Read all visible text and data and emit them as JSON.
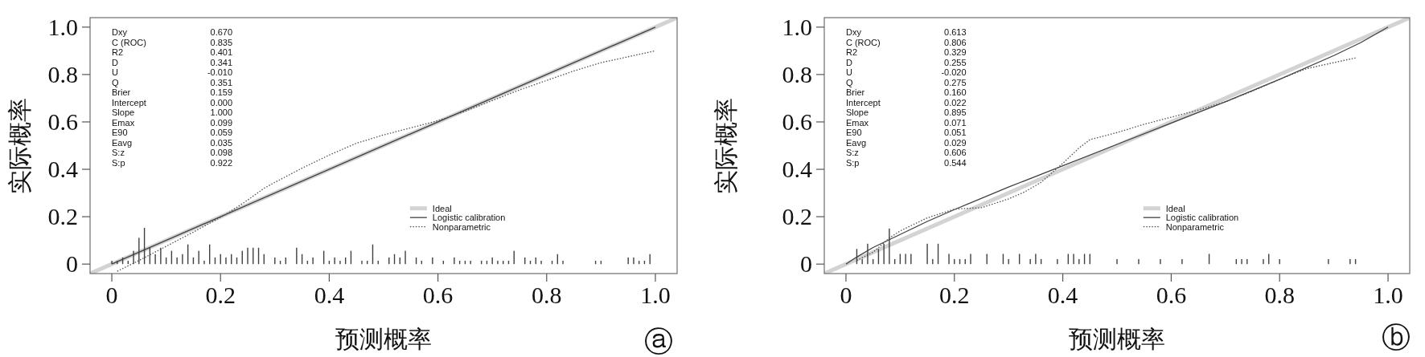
{
  "chart_data": [
    {
      "type": "line",
      "xlabel": "预测概率",
      "ylabel": "实际概率",
      "xlim": [
        -0.04,
        1.04
      ],
      "ylim": [
        -0.04,
        1.04
      ],
      "xticks": [
        0,
        0.2,
        0.4,
        0.6,
        0.8,
        {
          "value": 1,
          "label": "1.0"
        }
      ],
      "yticks": [
        0,
        0.2,
        0.4,
        0.6,
        0.8,
        {
          "value": 1,
          "label": "1.0"
        }
      ],
      "legend": "bottom",
      "annotations": [
        "Dxy",
        "0.670",
        "C (ROC)",
        "0.835",
        "R2",
        "0.401",
        "D",
        "0.341",
        "U",
        "-0.010",
        "Q",
        "0.351",
        "Brier",
        "0.159",
        "Intercept",
        "0.000",
        "Slope",
        "1.000",
        "Emax",
        "0.099",
        "E90",
        "0.059",
        "Eavg",
        "0.035",
        "S:z",
        "0.098",
        "S:p",
        "0.922",
        "ⓐ"
      ],
      "series": [
        {
          "name": "Ideal",
          "color": "#d3d3d3",
          "x": [
            -0.04,
            1.04
          ],
          "values": [
            -0.04,
            1.04
          ]
        },
        {
          "name": "Logistic calibration",
          "color": "#404040",
          "x": [
            0,
            1
          ],
          "values": [
            0,
            1
          ]
        },
        {
          "name": "Nonparametric",
          "color": "#505050",
          "line_style": "dotted",
          "x": [
            0.01,
            0.05,
            0.1,
            0.15,
            0.21,
            0.25,
            0.28,
            0.3,
            0.35,
            0.4,
            0.45,
            0.5,
            0.55,
            0.6,
            0.65,
            0.7,
            0.75,
            0.8,
            0.85,
            0.9,
            0.95,
            1.0
          ],
          "values": [
            -0.03,
            0.015,
            0.075,
            0.135,
            0.21,
            0.27,
            0.32,
            0.345,
            0.405,
            0.46,
            0.51,
            0.545,
            0.575,
            0.605,
            0.645,
            0.69,
            0.735,
            0.775,
            0.815,
            0.85,
            0.875,
            0.9
          ]
        },
        {
          "type": "bar",
          "color": "#404040",
          "x": [
            0,
            0.01,
            0.02,
            0.03,
            0.04,
            0.05,
            0.06,
            0.07,
            0.08,
            0.09,
            0.1,
            0.11,
            0.12,
            0.13,
            0.14,
            0.15,
            0.16,
            0.17,
            0.18,
            0.19,
            0.2,
            0.21,
            0.22,
            0.23,
            0.24,
            0.25,
            0.26,
            0.27,
            0.28,
            0.3,
            0.31,
            0.32,
            0.34,
            0.35,
            0.36,
            0.37,
            0.39,
            0.4,
            0.41,
            0.42,
            0.43,
            0.44,
            0.46,
            0.47,
            0.48,
            0.49,
            0.51,
            0.52,
            0.53,
            0.54,
            0.56,
            0.57,
            0.59,
            0.61,
            0.63,
            0.64,
            0.65,
            0.66,
            0.68,
            0.69,
            0.7,
            0.71,
            0.72,
            0.73,
            0.74,
            0.76,
            0.77,
            0.78,
            0.79,
            0.81,
            0.82,
            0.83,
            0.89,
            0.9,
            0.95,
            0.96,
            0.97,
            0.98,
            0.99
          ],
          "values": [
            0.014,
            0.014,
            0.028,
            0.014,
            0.056,
            0.111,
            0.153,
            0.069,
            0.042,
            0.069,
            0.028,
            0.056,
            0.028,
            0.042,
            0.083,
            0.028,
            0.056,
            0.014,
            0.083,
            0.028,
            0.042,
            0.028,
            0.042,
            0.028,
            0.056,
            0.069,
            0.069,
            0.069,
            0.042,
            0.028,
            0.014,
            0.028,
            0.069,
            0.042,
            0.014,
            0.028,
            0.056,
            0.014,
            0.028,
            0.014,
            0.028,
            0.056,
            0.014,
            0.014,
            0.083,
            0.014,
            0.028,
            0.042,
            0.028,
            0.056,
            0.028,
            0.014,
            0.028,
            0.014,
            0.028,
            0.014,
            0.014,
            0.014,
            0.014,
            0.014,
            0.028,
            0.014,
            0.014,
            0.014,
            0.056,
            0.028,
            0.014,
            0.028,
            0.014,
            0.014,
            0.042,
            0.014,
            0.014,
            0.014,
            0.028,
            0.028,
            0.014,
            0.014,
            0.042
          ]
        }
      ]
    },
    {
      "type": "line",
      "xlabel": "预测概率",
      "ylabel": "实际概率",
      "xlim": [
        -0.04,
        1.04
      ],
      "ylim": [
        -0.04,
        1.04
      ],
      "xticks": [
        0,
        0.2,
        0.4,
        0.6,
        0.8,
        {
          "value": 1,
          "label": "1.0"
        }
      ],
      "yticks": [
        0,
        0.2,
        0.4,
        0.6,
        0.8,
        {
          "value": 1,
          "label": "1.0"
        }
      ],
      "legend": "bottom",
      "annotations": [
        "Dxy",
        "0.613",
        "C (ROC)",
        "0.806",
        "R2",
        "0.329",
        "D",
        "0.255",
        "U",
        "-0.020",
        "Q",
        "0.275",
        "Brier",
        "0.160",
        "Intercept",
        "0.022",
        "Slope",
        "0.895",
        "Emax",
        "0.071",
        "E90",
        "0.051",
        "Eavg",
        "0.029",
        "S:z",
        "0.606",
        "S:p",
        "0.544",
        "ⓑ"
      ],
      "series": [
        {
          "name": "Ideal",
          "color": "#d3d3d3",
          "x": [
            -0.04,
            1.04
          ],
          "values": [
            -0.04,
            1.04
          ]
        },
        {
          "name": "Logistic calibration",
          "color": "#404040",
          "x": [
            0,
            0.02,
            0.05,
            0.1,
            0.15,
            0.2,
            0.3,
            0.4,
            0.5,
            0.6,
            0.7,
            0.8,
            0.9,
            0.95,
            1.0
          ],
          "values": [
            0,
            0.03,
            0.07,
            0.125,
            0.18,
            0.23,
            0.325,
            0.415,
            0.505,
            0.595,
            0.685,
            0.78,
            0.88,
            0.935,
            1.0
          ]
        },
        {
          "name": "Nonparametric",
          "color": "#505050",
          "line_style": "dotted",
          "x": [
            0.02,
            0.05,
            0.08,
            0.1,
            0.15,
            0.2,
            0.25,
            0.3,
            0.33,
            0.36,
            0.4,
            0.43,
            0.45,
            0.5,
            0.55,
            0.6,
            0.65,
            0.7,
            0.75,
            0.8,
            0.85,
            0.9,
            0.94
          ],
          "values": [
            0.015,
            0.05,
            0.11,
            0.14,
            0.195,
            0.232,
            0.238,
            0.275,
            0.305,
            0.345,
            0.425,
            0.49,
            0.525,
            0.555,
            0.59,
            0.62,
            0.65,
            0.685,
            0.73,
            0.78,
            0.825,
            0.85,
            0.87
          ]
        },
        {
          "type": "bar",
          "color": "#404040",
          "x": [
            0.02,
            0.03,
            0.04,
            0.05,
            0.06,
            0.07,
            0.08,
            0.09,
            0.1,
            0.11,
            0.12,
            0.15,
            0.16,
            0.17,
            0.19,
            0.2,
            0.21,
            0.22,
            0.23,
            0.26,
            0.29,
            0.3,
            0.32,
            0.34,
            0.35,
            0.36,
            0.39,
            0.41,
            0.42,
            0.43,
            0.44,
            0.45,
            0.5,
            0.54,
            0.58,
            0.62,
            0.67,
            0.72,
            0.73,
            0.74,
            0.77,
            0.78,
            0.8,
            0.89,
            0.93,
            0.94
          ],
          "values": [
            0.064,
            0.021,
            0.086,
            0.021,
            0.064,
            0.086,
            0.15,
            0.021,
            0.043,
            0.043,
            0.043,
            0.086,
            0.021,
            0.086,
            0.043,
            0.021,
            0.021,
            0.021,
            0.043,
            0.043,
            0.043,
            0.021,
            0.043,
            0.021,
            0.043,
            0.021,
            0.021,
            0.043,
            0.043,
            0.021,
            0.043,
            0.043,
            0.021,
            0.021,
            0.021,
            0.021,
            0.043,
            0.021,
            0.021,
            0.021,
            0.021,
            0.043,
            0.021,
            0.021,
            0.021,
            0.021
          ]
        }
      ]
    }
  ]
}
